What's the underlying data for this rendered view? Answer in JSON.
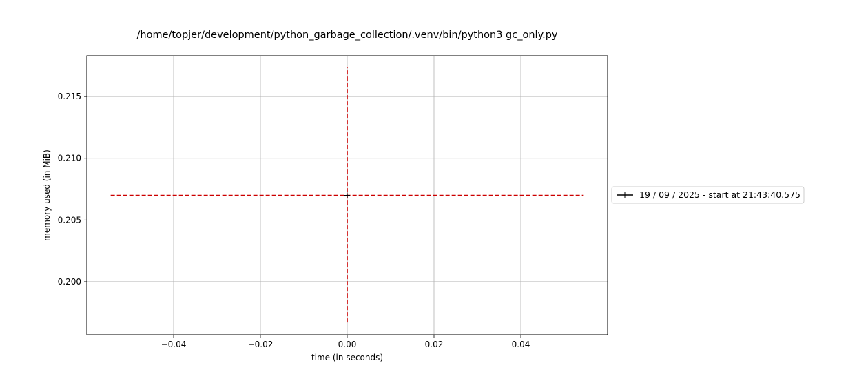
{
  "chart_data": {
    "type": "line",
    "title": "/home/topjer/development/python_garbage_collection/.venv/bin/python3 gc_only.py",
    "xlabel": "time (in seconds)",
    "ylabel": "memory used (in MiB)",
    "xlim": [
      -0.06,
      0.06
    ],
    "ylim": [
      0.1957,
      0.2183
    ],
    "grid": true,
    "x_ticks": [
      -0.04,
      -0.02,
      0.0,
      0.02,
      0.04
    ],
    "x_tick_labels": [
      "−0.04",
      "−0.02",
      "0.00",
      "0.02",
      "0.04"
    ],
    "y_ticks": [
      0.2,
      0.205,
      0.21,
      0.215
    ],
    "y_tick_labels": [
      "0.200",
      "0.205",
      "0.210",
      "0.215"
    ],
    "legend_position": "outside-right",
    "series": [
      {
        "name": "19 / 09 / 2025 - start at 21:43:40.575",
        "x": [
          0.0
        ],
        "y": [
          0.207
        ],
        "color": "#000000",
        "marker": "+"
      }
    ],
    "reference_lines": [
      {
        "orientation": "horizontal",
        "y": 0.207,
        "x_range": [
          -0.0545,
          0.0545
        ],
        "color": "#cc0000",
        "style": "dashed"
      },
      {
        "orientation": "vertical",
        "x": 0.0,
        "y_range": [
          0.1967,
          0.2174
        ],
        "color": "#cc0000",
        "style": "dashed"
      }
    ]
  }
}
